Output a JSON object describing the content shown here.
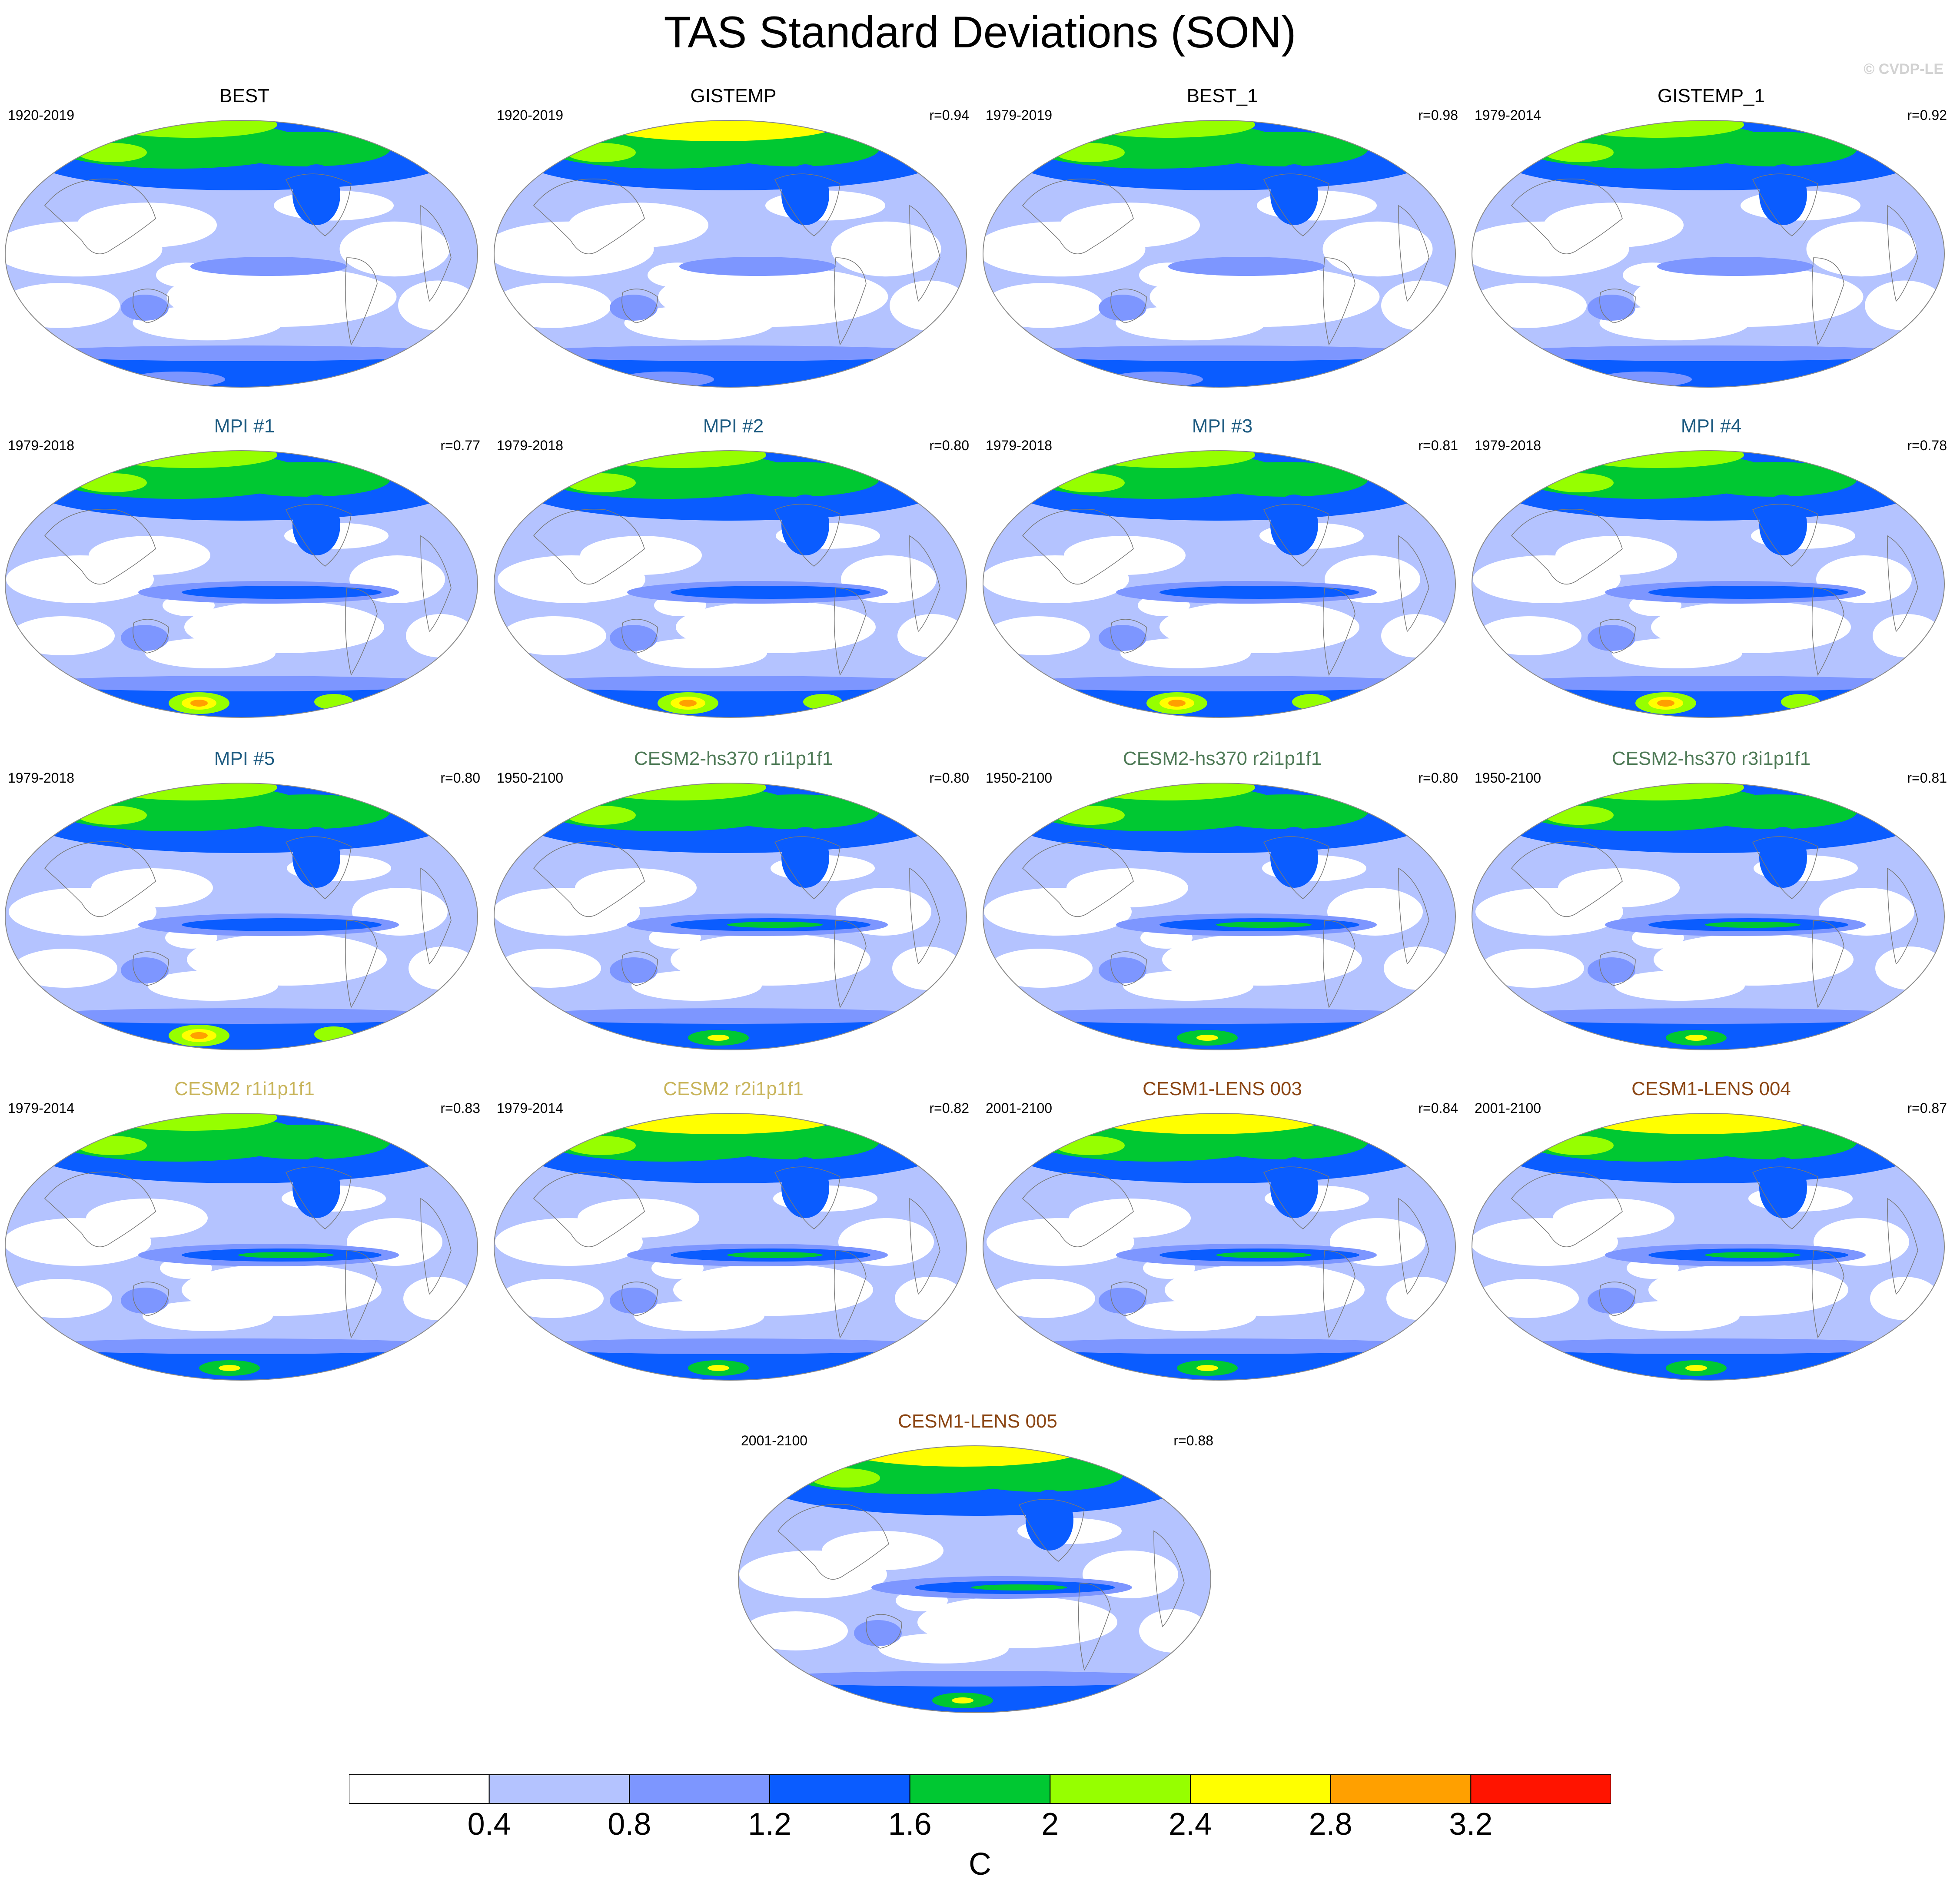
{
  "title": "TAS Standard Deviations (SON)",
  "copyright": "© CVDP-LE",
  "chart_data": {
    "type": "map-panels",
    "variable": "TAS",
    "season": "SON",
    "statistic": "Standard Deviation",
    "projection": "Robinson (Pacific-centered)",
    "colorbar": {
      "levels": [
        0.4,
        0.8,
        1.2,
        1.6,
        2,
        2.4,
        2.8,
        3.2
      ],
      "tick_labels": [
        "0.4",
        "0.8",
        "1.2",
        "1.6",
        "2",
        "2.4",
        "2.8",
        "3.2"
      ],
      "colors": [
        "#ffffff",
        "#b4c3ff",
        "#7d96ff",
        "#0a5cff",
        "#00c832",
        "#96ff00",
        "#ffff00",
        "#ffa000",
        "#ff1400"
      ],
      "units": "C"
    },
    "panels": [
      {
        "title": "BEST",
        "years": "1920-2019",
        "r": "",
        "title_color": "#000000"
      },
      {
        "title": "GISTEMP",
        "years": "1920-2019",
        "r": "r=0.94",
        "title_color": "#000000"
      },
      {
        "title": "BEST_1",
        "years": "1979-2019",
        "r": "r=0.98",
        "title_color": "#000000"
      },
      {
        "title": "GISTEMP_1",
        "years": "1979-2014",
        "r": "r=0.92",
        "title_color": "#000000"
      },
      {
        "title": "MPI #1",
        "years": "1979-2018",
        "r": "r=0.77",
        "title_color": "#1c5a80"
      },
      {
        "title": "MPI #2",
        "years": "1979-2018",
        "r": "r=0.80",
        "title_color": "#1c5a80"
      },
      {
        "title": "MPI #3",
        "years": "1979-2018",
        "r": "r=0.81",
        "title_color": "#1c5a80"
      },
      {
        "title": "MPI #4",
        "years": "1979-2018",
        "r": "r=0.78",
        "title_color": "#1c5a80"
      },
      {
        "title": "MPI #5",
        "years": "1979-2018",
        "r": "r=0.80",
        "title_color": "#1c5a80"
      },
      {
        "title": "CESM2-hs370 r1i1p1f1",
        "years": "1950-2100",
        "r": "r=0.80",
        "title_color": "#4e7a56"
      },
      {
        "title": "CESM2-hs370 r2i1p1f1",
        "years": "1950-2100",
        "r": "r=0.80",
        "title_color": "#4e7a56"
      },
      {
        "title": "CESM2-hs370 r3i1p1f1",
        "years": "1950-2100",
        "r": "r=0.81",
        "title_color": "#4e7a56"
      },
      {
        "title": "CESM2 r1i1p1f1",
        "years": "1979-2014",
        "r": "r=0.83",
        "title_color": "#c8b45a"
      },
      {
        "title": "CESM2 r2i1p1f1",
        "years": "1979-2014",
        "r": "r=0.82",
        "title_color": "#c8b45a"
      },
      {
        "title": "CESM1-LENS 003",
        "years": "2001-2100",
        "r": "r=0.84",
        "title_color": "#8b4513"
      },
      {
        "title": "CESM1-LENS 004",
        "years": "2001-2100",
        "r": "r=0.87",
        "title_color": "#8b4513"
      },
      {
        "title": "CESM1-LENS 005",
        "years": "2001-2100",
        "r": "r=0.88",
        "title_color": "#8b4513"
      }
    ]
  }
}
